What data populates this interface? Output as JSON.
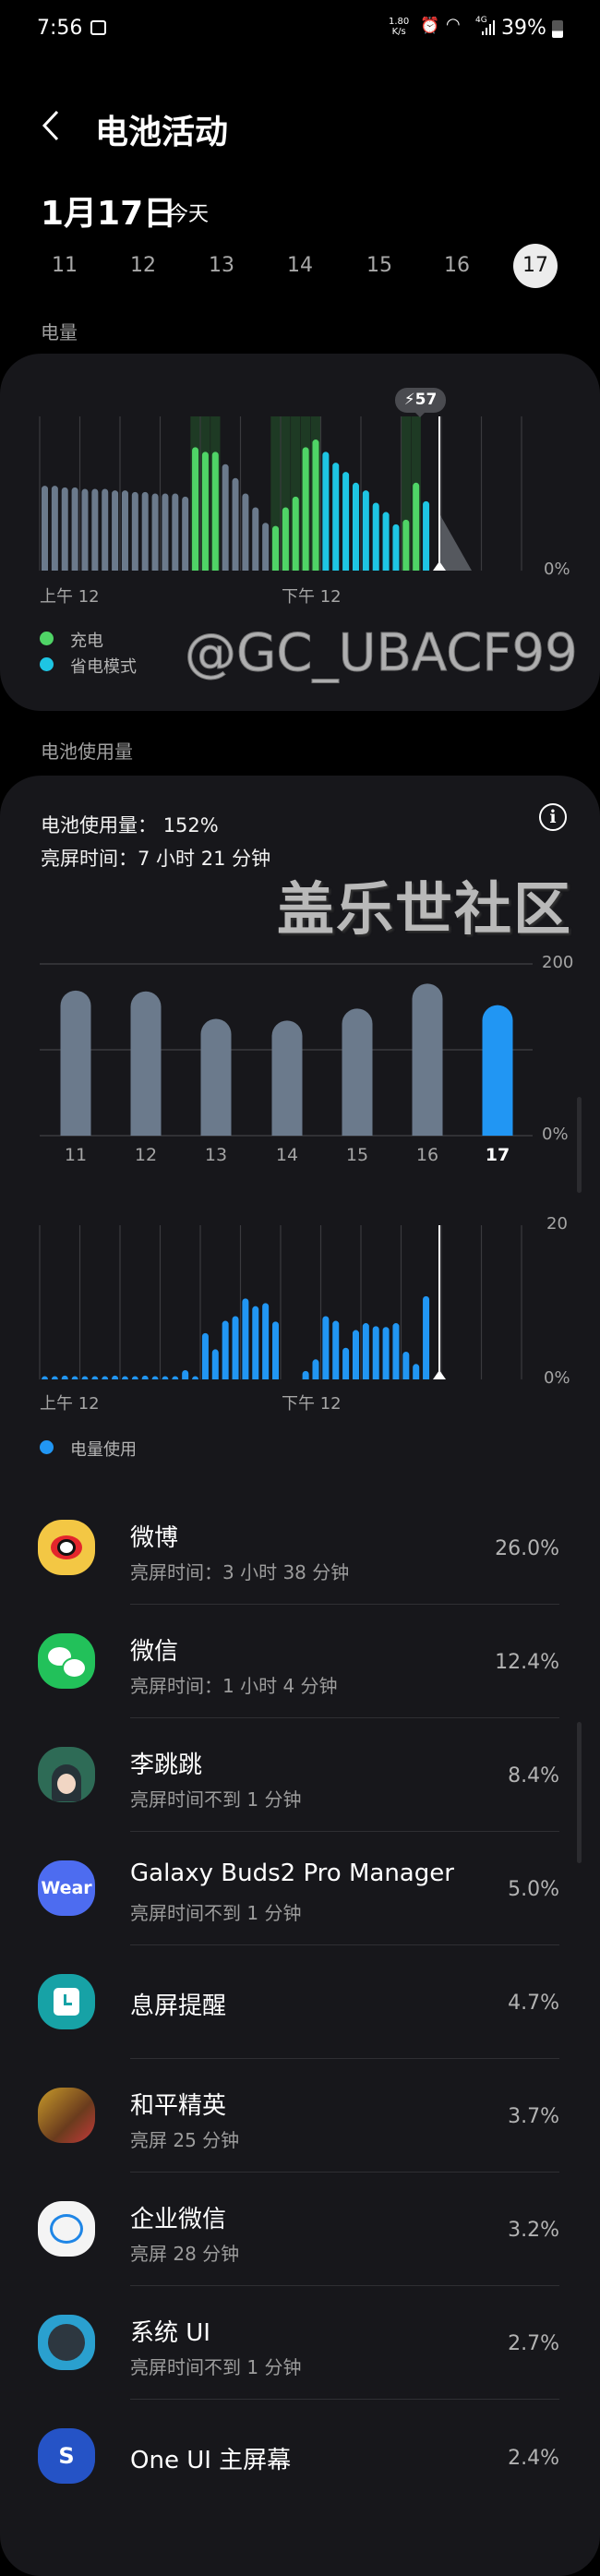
{
  "status_bar": {
    "time": "7:56",
    "net_speed": "1.80",
    "net_unit": "K/s",
    "network": "4G",
    "battery": "39%"
  },
  "header": {
    "title": "电池活动"
  },
  "date": {
    "main": "1月17日",
    "sub": "今天"
  },
  "days": [
    "11",
    "12",
    "13",
    "14",
    "15",
    "16",
    "17"
  ],
  "selected_day": "17",
  "sections": {
    "battery_level": "电量",
    "battery_usage": "电池使用量"
  },
  "colors": {
    "normal": "#6b7a8c",
    "charging": "#4fd466",
    "power_saving": "#1ec5e3",
    "usage": "#2196f3",
    "charging_band": "#1e3a24",
    "card": "#17171b"
  },
  "usage_summary": {
    "usage_label": "电池使用量：",
    "usage_value": "152%",
    "screen_label": "亮屏时间：",
    "screen_value": "7 小时 21 分钟",
    "info_icon": "info-icon"
  },
  "chart_data": [
    {
      "type": "bar",
      "ylim": [
        0,
        100
      ],
      "y_tick_labels": [
        "0%"
      ],
      "x_tick_labels": [
        "上午 12",
        "下午 12"
      ],
      "values": [
        55,
        55,
        54,
        54,
        53,
        53,
        53,
        52,
        52,
        51,
        51,
        50,
        50,
        50,
        48,
        80,
        77,
        77,
        69,
        60,
        50,
        41,
        31,
        29,
        41,
        48,
        80,
        85,
        77,
        70,
        64,
        57,
        52,
        44,
        38,
        30,
        33,
        57,
        45
      ],
      "states": [
        "normal",
        "normal",
        "normal",
        "normal",
        "normal",
        "normal",
        "normal",
        "normal",
        "normal",
        "normal",
        "normal",
        "normal",
        "normal",
        "normal",
        "normal",
        "charging",
        "charging",
        "charging",
        "normal",
        "normal",
        "normal",
        "normal",
        "normal",
        "charging",
        "charging",
        "charging",
        "charging",
        "charging",
        "power_saving",
        "power_saving",
        "power_saving",
        "power_saving",
        "power_saving",
        "power_saving",
        "power_saving",
        "power_saving",
        "charging",
        "charging",
        "power_saving"
      ],
      "callout": "57",
      "projection_start": 37,
      "legend": [
        {
          "name": "充电",
          "state": "charging"
        },
        {
          "name": "省电模式",
          "state": "power_saving"
        }
      ],
      "grid": true
    },
    {
      "type": "bar",
      "categories": [
        "11",
        "12",
        "13",
        "14",
        "15",
        "16",
        "17"
      ],
      "values": [
        169,
        168,
        136,
        134,
        148,
        177,
        152
      ],
      "highlight": "17",
      "ylim": [
        0,
        200
      ],
      "y_tick_labels": [
        "200",
        "0%"
      ],
      "grid": true
    },
    {
      "type": "bar",
      "values": [
        0.3,
        0.3,
        0.5,
        0.4,
        0.1,
        0.4,
        0.3,
        0.5,
        0.4,
        0.1,
        0.5,
        0.4,
        0.3,
        0.3,
        1.2,
        0.1,
        6.0,
        3.9,
        7.6,
        8.2,
        10.5,
        9.5,
        9.9,
        7.5,
        0,
        0,
        1.1,
        2.6,
        8.2,
        7.6,
        4.1,
        6.4,
        7.3,
        6.9,
        6.8,
        7.3,
        3.6,
        2.0,
        10.8
      ],
      "ylim": [
        0,
        20
      ],
      "y_tick_labels": [
        "20",
        "0%"
      ],
      "x_tick_labels": [
        "上午 12",
        "下午 12"
      ],
      "legend": [
        {
          "name": "电量使用"
        }
      ],
      "grid": true
    }
  ],
  "apps": [
    {
      "name": "微博",
      "sub": "亮屏时间：3 小时 38 分钟",
      "pct": "26.0%",
      "icon": "weibo-icon"
    },
    {
      "name": "微信",
      "sub": "亮屏时间：1 小时 4 分钟",
      "pct": "12.4%",
      "icon": "wechat-icon"
    },
    {
      "name": "李跳跳",
      "sub": "亮屏时间不到 1 分钟",
      "pct": "8.4%",
      "icon": "avatar-icon"
    },
    {
      "name": "Galaxy Buds2 Pro Manager",
      "sub": "亮屏时间不到 1 分钟",
      "pct": "5.0%",
      "icon": "wear-icon",
      "icon_text": "Wear"
    },
    {
      "name": "息屏提醒",
      "sub": "",
      "pct": "4.7%",
      "icon": "clock-icon"
    },
    {
      "name": "和平精英",
      "sub": "亮屏 25 分钟",
      "pct": "3.7%",
      "icon": "game-icon"
    },
    {
      "name": "企业微信",
      "sub": "亮屏 28 分钟",
      "pct": "3.2%",
      "icon": "wecom-icon"
    },
    {
      "name": "系统 UI",
      "sub": "亮屏时间不到 1 分钟",
      "pct": "2.7%",
      "icon": "system-ui-icon"
    },
    {
      "name": "One UI 主屏幕",
      "sub": "",
      "pct": "2.4%",
      "icon": "oneui-home-icon",
      "icon_text": "S"
    }
  ],
  "watermark": {
    "line1": "盖乐世社区",
    "line2": "@GC_UBACF99"
  }
}
